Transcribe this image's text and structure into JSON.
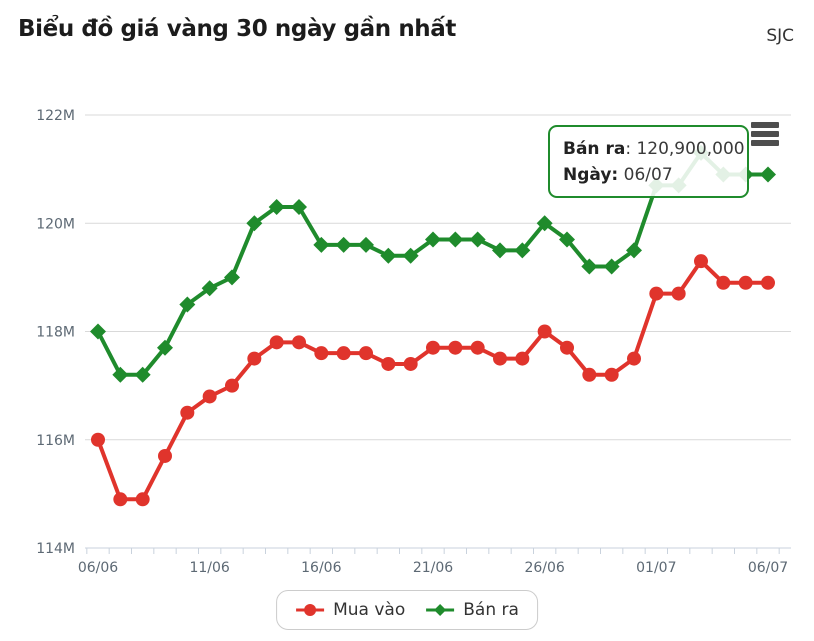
{
  "header": {
    "title": "Biểu đồ giá vàng 30 ngày gần nhất",
    "brand": "SJC"
  },
  "chart_data": {
    "type": "line",
    "title": "Biểu đồ giá vàng 30 ngày gần nhất",
    "categories": [
      "06/06",
      "07/06",
      "08/06",
      "09/06",
      "10/06",
      "11/06",
      "12/06",
      "13/06",
      "14/06",
      "15/06",
      "16/06",
      "17/06",
      "18/06",
      "19/06",
      "20/06",
      "21/06",
      "22/06",
      "23/06",
      "24/06",
      "25/06",
      "26/06",
      "27/06",
      "28/06",
      "29/06",
      "30/06",
      "01/07",
      "02/07",
      "03/07",
      "04/07",
      "05/07",
      "06/07"
    ],
    "series": [
      {
        "name": "Mua vào",
        "color": "#e0342c",
        "marker": "circle",
        "unit": "million VND",
        "values": [
          116.0,
          114.9,
          114.9,
          115.7,
          116.5,
          116.8,
          117.0,
          117.5,
          117.8,
          117.8,
          117.6,
          117.6,
          117.6,
          117.4,
          117.4,
          117.7,
          117.7,
          117.7,
          117.5,
          117.5,
          118.0,
          117.7,
          117.2,
          117.2,
          117.5,
          118.7,
          118.7,
          119.3,
          118.9,
          118.9,
          118.9
        ]
      },
      {
        "name": "Bán ra",
        "color": "#1f8b2c",
        "marker": "diamond",
        "unit": "million VND",
        "values": [
          118.0,
          117.2,
          117.2,
          117.7,
          118.5,
          118.8,
          119.0,
          120.0,
          120.3,
          120.3,
          119.6,
          119.6,
          119.6,
          119.4,
          119.4,
          119.7,
          119.7,
          119.7,
          119.5,
          119.5,
          120.0,
          119.7,
          119.2,
          119.2,
          119.5,
          120.7,
          120.7,
          121.3,
          120.9,
          120.9,
          120.9
        ]
      }
    ],
    "ylim": [
      114,
      122
    ],
    "y_ticks": [
      122,
      120,
      118,
      116,
      114
    ],
    "y_tick_labels": [
      "122M",
      "120M",
      "118M",
      "116M",
      "114M"
    ],
    "x_label_indices": [
      0,
      5,
      10,
      15,
      20,
      25,
      30
    ],
    "x_tick_labels": [
      "06/06",
      "11/06",
      "16/06",
      "21/06",
      "26/06",
      "01/07",
      "06/07"
    ],
    "grid": true,
    "legend_position": "bottom"
  },
  "tooltip": {
    "line1": {
      "label": "Bán ra",
      "separator": ": ",
      "value": "120,900,000"
    },
    "line2": {
      "label": "Ngày:",
      "separator": " ",
      "value": "06/07"
    }
  },
  "colors": {
    "buy_series": "#e0342c",
    "sell_series": "#1f8b2c",
    "grid_line": "#d9d9d9",
    "axis_line": "#c9d2dd",
    "axis_label": "#5d6974"
  }
}
